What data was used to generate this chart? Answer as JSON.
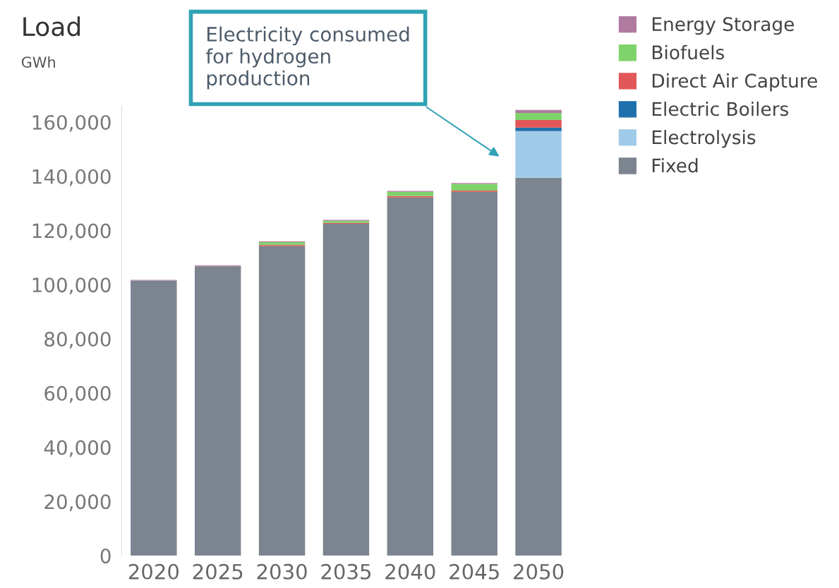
{
  "chart_data": {
    "type": "bar",
    "stacked": true,
    "title": "Load",
    "subtitle": "GWh",
    "categories": [
      "2020",
      "2025",
      "2030",
      "2035",
      "2040",
      "2045",
      "2050"
    ],
    "series": [
      {
        "name": "Fixed",
        "color": "#7b848f",
        "values": [
          101500,
          106800,
          114300,
          122500,
          132200,
          134300,
          139500
        ]
      },
      {
        "name": "Electrolysis",
        "color": "#a0cbe8",
        "values": [
          0,
          0,
          0,
          0,
          0,
          0,
          17200
        ]
      },
      {
        "name": "Electric Boilers",
        "color": "#1f6fad",
        "values": [
          0,
          0,
          0,
          0,
          0,
          0,
          1300
        ]
      },
      {
        "name": "Direct Air Capture",
        "color": "#e15759",
        "values": [
          0,
          0,
          400,
          300,
          500,
          400,
          2800
        ]
      },
      {
        "name": "Biofuels",
        "color": "#7fd36b",
        "values": [
          0,
          0,
          1000,
          800,
          1600,
          2500,
          2600
        ]
      },
      {
        "name": "Energy Storage",
        "color": "#b07aa1",
        "values": [
          300,
          300,
          300,
          300,
          300,
          300,
          1100
        ]
      }
    ],
    "ylim": [
      0,
      166000
    ],
    "yticks": [
      {
        "value": 0,
        "label": "0"
      },
      {
        "value": 20000,
        "label": "20,000"
      },
      {
        "value": 40000,
        "label": "40,000"
      },
      {
        "value": 60000,
        "label": "60,000"
      },
      {
        "value": 80000,
        "label": "80,000"
      },
      {
        "value": 100000,
        "label": "100,000"
      },
      {
        "value": 120000,
        "label": "120,000"
      },
      {
        "value": 140000,
        "label": "140,000"
      },
      {
        "value": 160000,
        "label": "160,000"
      }
    ],
    "grid": false,
    "legend": "top right",
    "annotations": [
      "Electricity consumed\nfor hydrogen\nproduction"
    ]
  }
}
